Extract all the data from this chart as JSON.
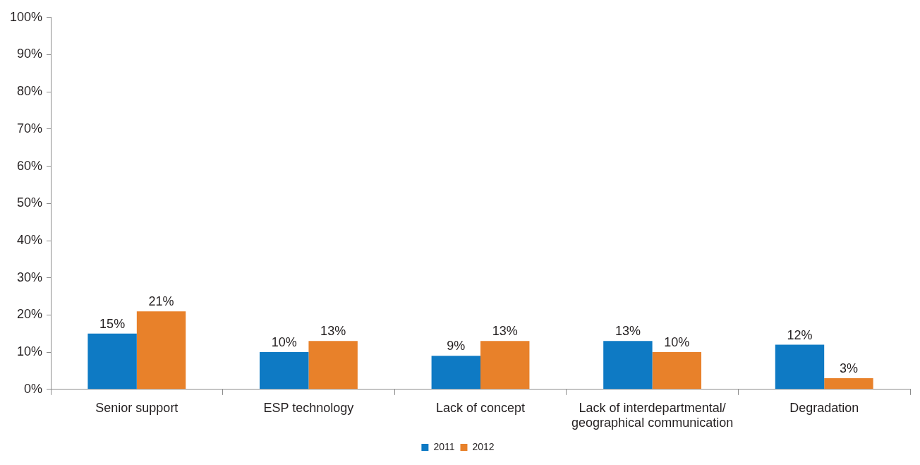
{
  "chart_data": {
    "type": "bar",
    "categories": [
      "Senior support",
      "ESP technology",
      "Lack of concept",
      "Lack of interdepartmental/ geographical communication",
      "Degradation"
    ],
    "series": [
      {
        "name": "2011",
        "color": "#0e7ac4",
        "values": [
          15,
          10,
          9,
          13,
          12
        ],
        "value_labels": [
          "15%",
          "10%",
          "9%",
          "13%",
          "12%"
        ]
      },
      {
        "name": "2012",
        "color": "#e8812a",
        "values": [
          21,
          13,
          13,
          10,
          3
        ],
        "value_labels": [
          "21%",
          "13%",
          "13%",
          "10%",
          "3%"
        ]
      }
    ],
    "ylim": [
      0,
      100
    ],
    "yticks": [
      {
        "value": 0,
        "label": "0%"
      },
      {
        "value": 10,
        "label": "10%"
      },
      {
        "value": 20,
        "label": "20%"
      },
      {
        "value": 30,
        "label": "30%"
      },
      {
        "value": 40,
        "label": "40%"
      },
      {
        "value": 50,
        "label": "50%"
      },
      {
        "value": 60,
        "label": "60%"
      },
      {
        "value": 70,
        "label": "70%"
      },
      {
        "value": 80,
        "label": "80%"
      },
      {
        "value": 90,
        "label": "90%"
      },
      {
        "value": 100,
        "label": "100%"
      }
    ],
    "grid": false,
    "legend": "bottom"
  }
}
